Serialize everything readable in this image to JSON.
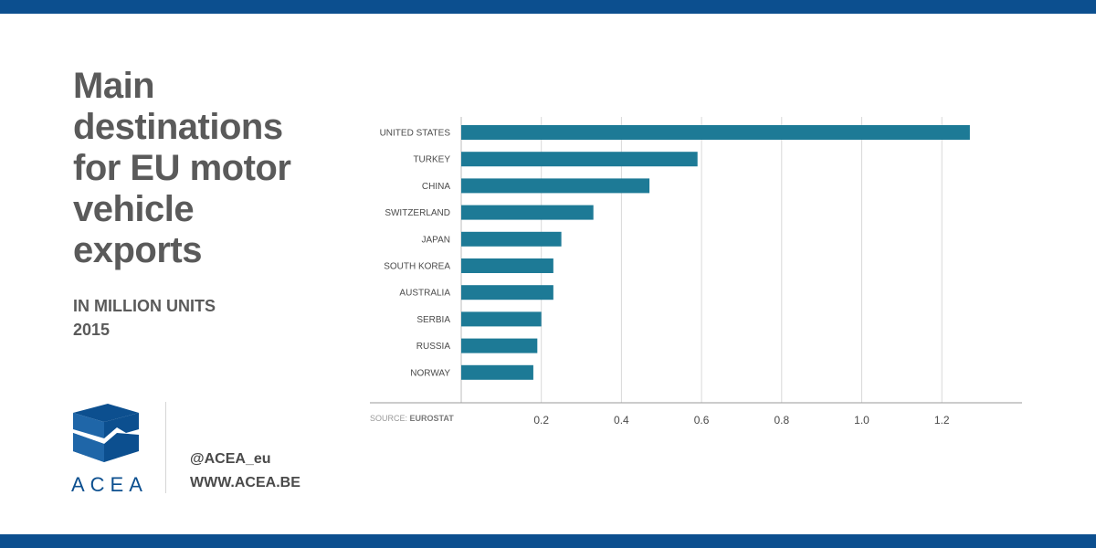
{
  "header": {
    "title": "Main destinations for EU motor vehicle exports",
    "unit": "IN MILLION UNITS",
    "year": "2015"
  },
  "logo": {
    "wordmark": "ACEA",
    "color": "#0c4f8f"
  },
  "contact": {
    "twitter": "@ACEA_eu",
    "website": "WWW.ACEA.BE"
  },
  "source": {
    "prefix": "SOURCE:",
    "name": "EUROSTAT"
  },
  "colors": {
    "band": "#0c4f8f",
    "bar": "#1d7a96",
    "text": "#5a5a5a",
    "grid": "#d9d9d9"
  },
  "chart_data": {
    "type": "bar",
    "orientation": "horizontal",
    "categories": [
      "UNITED STATES",
      "TURKEY",
      "CHINA",
      "SWITZERLAND",
      "JAPAN",
      "SOUTH KOREA",
      "AUSTRALIA",
      "SERBIA",
      "RUSSIA",
      "NORWAY"
    ],
    "values": [
      1.27,
      0.59,
      0.47,
      0.33,
      0.25,
      0.23,
      0.23,
      0.2,
      0.19,
      0.18
    ],
    "xlim": [
      0,
      1.4
    ],
    "xticks": [
      0.2,
      0.4,
      0.6,
      0.8,
      1.0,
      1.2
    ],
    "xtick_labels": [
      "0.2",
      "0.4",
      "0.6",
      "0.8",
      "1.0",
      "1.2"
    ],
    "grid": true,
    "legend": "none"
  }
}
